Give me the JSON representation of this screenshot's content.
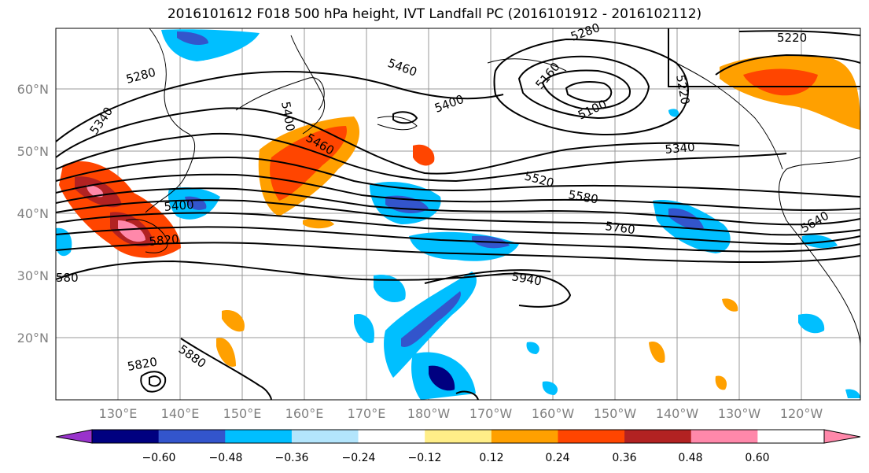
{
  "title": "2016101612 F018 500 hPa height, IVT Landfall PC (2016101912 - 2016102112)",
  "lat_labels": [
    "60°N",
    "50°N",
    "40°N",
    "30°N",
    "20°N"
  ],
  "lon_labels": [
    "130°E",
    "140°E",
    "150°E",
    "160°E",
    "170°E",
    "180°W",
    "170°W",
    "160°W",
    "150°W",
    "140°W",
    "130°W",
    "120°W"
  ],
  "contour_labels": [
    "5280",
    "5340",
    "5460",
    "5400",
    "5460",
    "5400",
    "5160",
    "5100",
    "5220",
    "5220",
    "5280",
    "5340",
    "5520",
    "5580",
    "5760",
    "5640",
    "5400",
    "5820",
    "5940",
    "5880",
    "5820",
    "580"
  ],
  "colorbar": {
    "ticks": [
      "−0.60",
      "−0.48",
      "−0.36",
      "−0.24",
      "−0.12",
      "0.12",
      "0.24",
      "0.36",
      "0.48",
      "0.60"
    ],
    "colors": [
      "#9933cc",
      "#000080",
      "#3355cc",
      "#00bfff",
      "#b3e5fc",
      "#ffffff",
      "#ffee88",
      "#ffa000",
      "#ff4500",
      "#b22222",
      "#ff88aa",
      "#ffffff"
    ]
  }
}
